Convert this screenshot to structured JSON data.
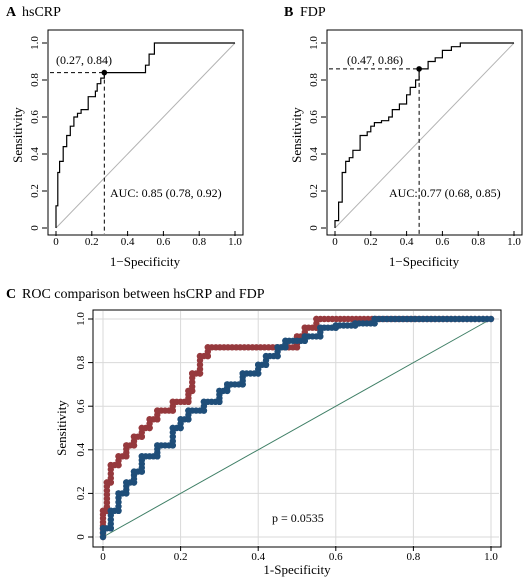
{
  "panel_a": {
    "letter": "A",
    "title": "hsCRP"
  },
  "panel_b": {
    "letter": "B",
    "title": "FDP"
  },
  "panel_c": {
    "letter": "C",
    "title": "ROC comparison between hsCRP and FDP"
  },
  "colors": {
    "hscrp": "#96393d",
    "fdp": "#1f4e79",
    "diagonal": "#3f7f66",
    "grid": "#d9d9d9",
    "axis": "#000000"
  },
  "chart_data": [
    {
      "type": "line",
      "panel": "A",
      "title": "hsCRP",
      "xlabel": "1−Specificity",
      "ylabel": "Sensitivity",
      "xlim": [
        0,
        1
      ],
      "ylim": [
        0,
        1
      ],
      "x_ticks": [
        "0",
        "0.2",
        "0.4",
        "0.6",
        "0.8",
        "1.0"
      ],
      "y_ticks": [
        "0",
        "0.2",
        "0.4",
        "0.6",
        "0.8",
        "1.0"
      ],
      "grid": false,
      "series": [
        {
          "x": [
            0,
            0,
            0.01,
            0.01,
            0.02,
            0.02,
            0.04,
            0.04,
            0.06,
            0.06,
            0.08,
            0.08,
            0.1,
            0.1,
            0.12,
            0.12,
            0.14,
            0.14,
            0.18,
            0.18,
            0.22,
            0.22,
            0.23,
            0.23,
            0.25,
            0.25,
            0.27,
            0.27,
            0.5,
            0.5,
            0.52,
            0.52,
            0.55,
            0.55,
            1.0
          ],
          "y": [
            0,
            0.12,
            0.12,
            0.3,
            0.3,
            0.36,
            0.36,
            0.44,
            0.44,
            0.5,
            0.5,
            0.55,
            0.55,
            0.6,
            0.6,
            0.62,
            0.62,
            0.64,
            0.64,
            0.71,
            0.71,
            0.74,
            0.74,
            0.78,
            0.78,
            0.81,
            0.81,
            0.84,
            0.84,
            0.88,
            0.88,
            0.94,
            0.94,
            1.0,
            1.0
          ]
        }
      ],
      "cutoff_point": {
        "x": 0.27,
        "y": 0.84,
        "label": "(0.27, 0.84)"
      },
      "annotation": "AUC: 0.85 (0.78, 0.92)"
    },
    {
      "type": "line",
      "panel": "B",
      "title": "FDP",
      "xlabel": "1−Specificity",
      "ylabel": "Sensitivity",
      "xlim": [
        0,
        1
      ],
      "ylim": [
        0,
        1
      ],
      "x_ticks": [
        "0",
        "0.2",
        "0.4",
        "0.6",
        "0.8",
        "1.0"
      ],
      "y_ticks": [
        "0",
        "0.2",
        "0.4",
        "0.6",
        "0.8",
        "1.0"
      ],
      "grid": false,
      "series": [
        {
          "x": [
            0,
            0,
            0.02,
            0.02,
            0.04,
            0.04,
            0.06,
            0.06,
            0.08,
            0.08,
            0.1,
            0.1,
            0.14,
            0.14,
            0.18,
            0.18,
            0.2,
            0.2,
            0.22,
            0.22,
            0.26,
            0.26,
            0.3,
            0.3,
            0.32,
            0.32,
            0.36,
            0.36,
            0.4,
            0.4,
            0.42,
            0.42,
            0.45,
            0.45,
            0.47,
            0.47,
            0.52,
            0.52,
            0.56,
            0.56,
            0.6,
            0.6,
            0.65,
            0.65,
            0.7,
            0.7,
            1.0
          ],
          "y": [
            0,
            0.04,
            0.04,
            0.14,
            0.14,
            0.3,
            0.3,
            0.36,
            0.36,
            0.38,
            0.38,
            0.42,
            0.42,
            0.5,
            0.5,
            0.52,
            0.52,
            0.55,
            0.55,
            0.57,
            0.57,
            0.58,
            0.58,
            0.6,
            0.6,
            0.64,
            0.64,
            0.67,
            0.67,
            0.72,
            0.72,
            0.76,
            0.76,
            0.8,
            0.8,
            0.86,
            0.86,
            0.9,
            0.9,
            0.92,
            0.92,
            0.96,
            0.96,
            0.98,
            0.98,
            1.0,
            1.0
          ]
        }
      ],
      "cutoff_point": {
        "x": 0.47,
        "y": 0.86,
        "label": "(0.47, 0.86)"
      },
      "annotation": "AUC: 0.77 (0.68, 0.85)"
    },
    {
      "type": "line",
      "panel": "C",
      "title": "ROC comparison between hsCRP and FDP",
      "xlabel": "1-Specificity",
      "ylabel": "Sensitivity",
      "xlim": [
        0,
        1
      ],
      "ylim": [
        0,
        1
      ],
      "x_ticks": [
        "0",
        "0.2",
        "0.4",
        "0.6",
        "0.8",
        "1.0"
      ],
      "y_ticks": [
        "0",
        "0.2",
        "0.4",
        "0.6",
        "0.8",
        "1.0"
      ],
      "grid": true,
      "series": [
        {
          "key": "hscrp",
          "x": [
            0,
            0,
            0.01,
            0.01,
            0.02,
            0.02,
            0.04,
            0.04,
            0.06,
            0.06,
            0.08,
            0.08,
            0.1,
            0.1,
            0.12,
            0.12,
            0.14,
            0.14,
            0.18,
            0.18,
            0.22,
            0.22,
            0.23,
            0.23,
            0.25,
            0.25,
            0.27,
            0.27,
            0.5,
            0.5,
            0.52,
            0.52,
            0.55,
            0.55,
            1.0
          ],
          "y": [
            0,
            0.12,
            0.12,
            0.25,
            0.25,
            0.33,
            0.33,
            0.37,
            0.37,
            0.42,
            0.42,
            0.46,
            0.46,
            0.5,
            0.5,
            0.54,
            0.54,
            0.58,
            0.58,
            0.62,
            0.62,
            0.67,
            0.67,
            0.75,
            0.75,
            0.83,
            0.83,
            0.87,
            0.87,
            0.92,
            0.92,
            0.96,
            0.96,
            1.0,
            1.0
          ]
        },
        {
          "key": "fdp",
          "x": [
            0,
            0,
            0.02,
            0.02,
            0.04,
            0.04,
            0.06,
            0.06,
            0.08,
            0.08,
            0.1,
            0.1,
            0.14,
            0.14,
            0.18,
            0.18,
            0.2,
            0.2,
            0.22,
            0.22,
            0.26,
            0.26,
            0.3,
            0.3,
            0.32,
            0.32,
            0.36,
            0.36,
            0.4,
            0.4,
            0.42,
            0.42,
            0.45,
            0.45,
            0.47,
            0.47,
            0.52,
            0.52,
            0.56,
            0.56,
            0.6,
            0.6,
            0.65,
            0.65,
            0.7,
            0.7,
            1.0
          ],
          "y": [
            0,
            0.04,
            0.04,
            0.12,
            0.12,
            0.2,
            0.2,
            0.25,
            0.25,
            0.3,
            0.3,
            0.37,
            0.37,
            0.42,
            0.42,
            0.5,
            0.5,
            0.54,
            0.54,
            0.58,
            0.58,
            0.62,
            0.62,
            0.67,
            0.67,
            0.7,
            0.7,
            0.75,
            0.75,
            0.79,
            0.79,
            0.83,
            0.83,
            0.87,
            0.87,
            0.9,
            0.9,
            0.92,
            0.92,
            0.96,
            0.96,
            0.97,
            0.97,
            0.98,
            0.98,
            1.0,
            1.0
          ]
        }
      ],
      "annotation": "p = 0.0535"
    }
  ]
}
